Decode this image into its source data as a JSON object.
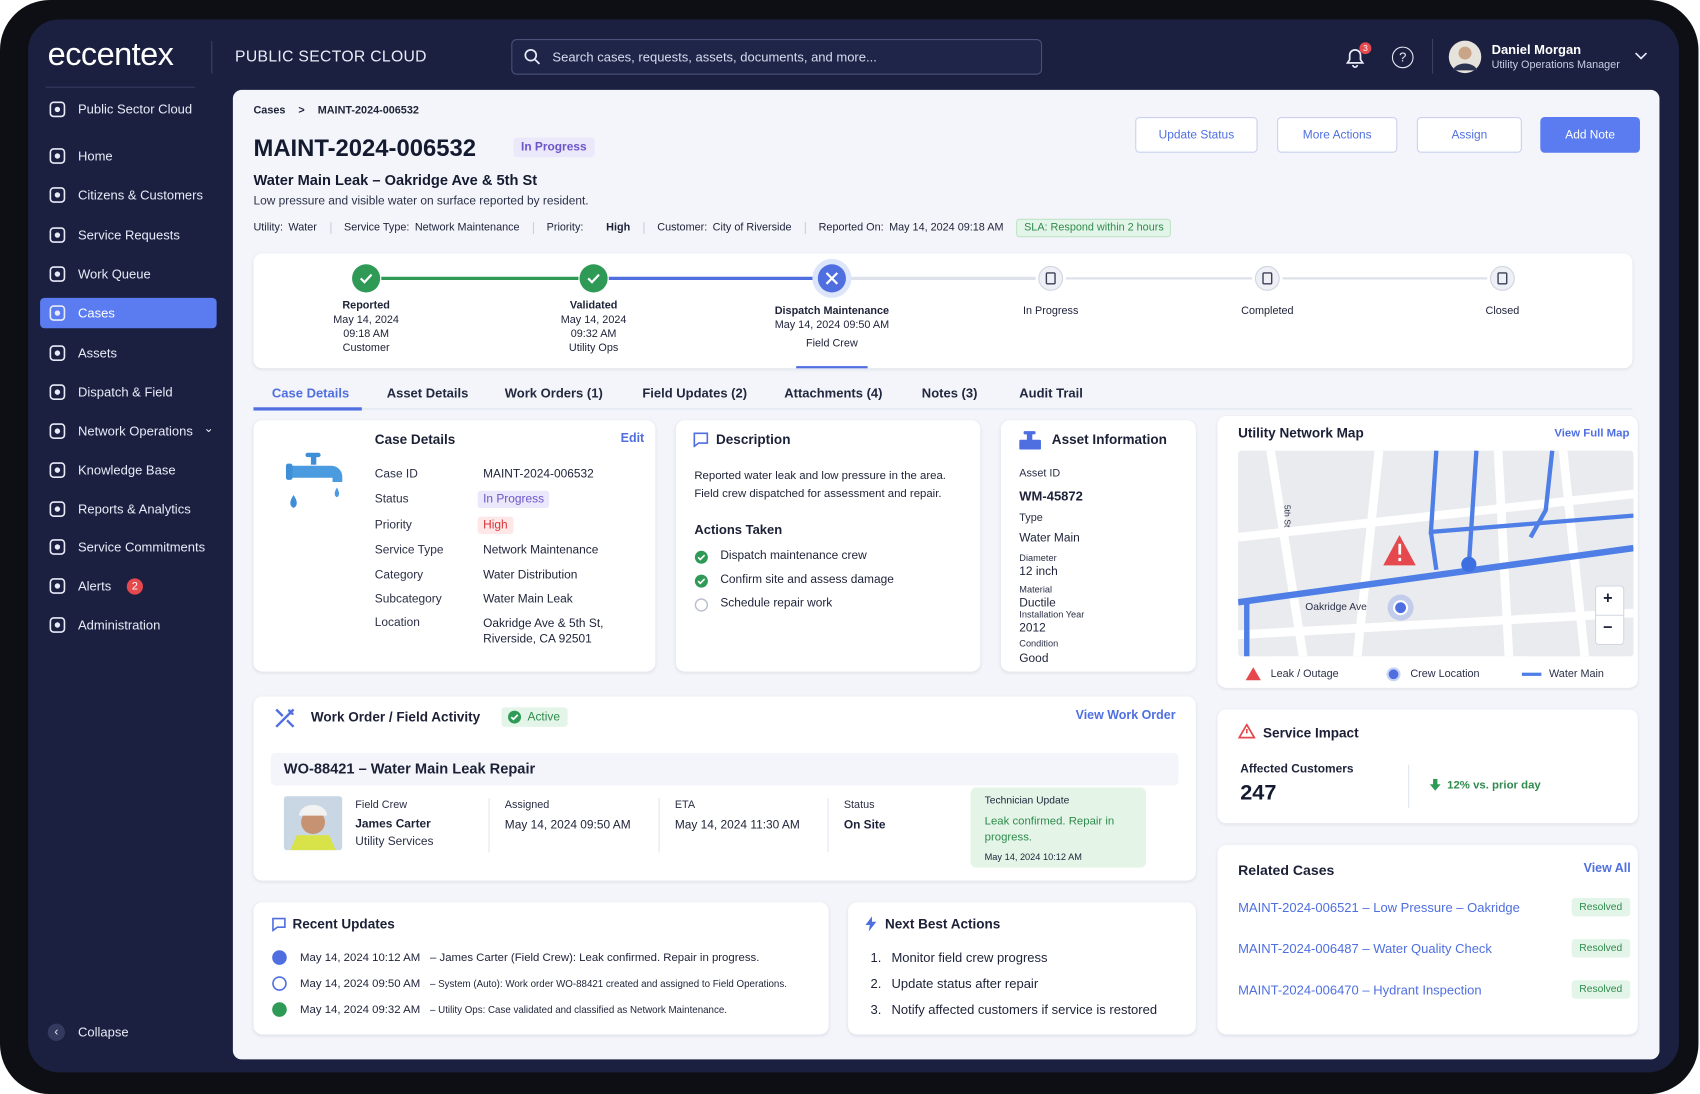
{
  "header": {
    "brand": "eccentex",
    "product": "PUBLIC SECTOR CLOUD",
    "search_placeholder": "Search cases, requests, assets, documents, and more...",
    "notifications": "3",
    "help": "?",
    "user_name": "Daniel Morgan",
    "user_role": "Utility Operations Manager"
  },
  "sidebar": {
    "items": [
      "Public Sector Cloud",
      "Home",
      "Citizens & Customers",
      "Service Requests",
      "Work Queue",
      "Cases",
      "Assets",
      "Dispatch & Field",
      "Network Operations",
      "Knowledge Base",
      "Reports & Analytics",
      "Service Commitments",
      "Alerts",
      "Administration"
    ],
    "active": 5,
    "alerts_badge": "2",
    "collapse": "Collapse"
  },
  "case": {
    "breadcrumb": [
      "Cases",
      ">",
      "MAINT-2024-006532"
    ],
    "id": "MAINT-2024-006532",
    "status": "In Progress",
    "title": "Water Main Leak – Oakridge Ave & 5th St",
    "subtitle": "Low pressure and visible water on surface reported by resident.",
    "meta": [
      {
        "label": "Utility:",
        "value": "Water"
      },
      {
        "label": "Service Type:",
        "value": "Network Maintenance"
      },
      {
        "label": "Priority:",
        "value": "High"
      },
      {
        "label": "Customer:",
        "value": "City of Riverside"
      },
      {
        "label": "Reported On:",
        "value": "May 14, 2024 09:18 AM"
      }
    ],
    "sla": "SLA: Respond within 2 hours",
    "buttons": [
      "Update Status",
      "More Actions",
      "Assign",
      "Add Note"
    ]
  },
  "stepper": [
    {
      "label": "Reported",
      "lines": [
        "May 14, 2024",
        "09:18 AM",
        "Customer"
      ],
      "state": "done"
    },
    {
      "label": "Validated",
      "lines": [
        "May 14, 2024",
        "09:32 AM",
        "Utility Ops"
      ],
      "state": "done"
    },
    {
      "label": "Dispatch Maintenance",
      "lines": [
        "May 14, 2024 09:50 AM",
        "Field Crew"
      ],
      "state": "current"
    },
    {
      "label": "In Progress",
      "lines": [],
      "state": "todo"
    },
    {
      "label": "Completed",
      "lines": [],
      "state": "todo"
    },
    {
      "label": "Closed",
      "lines": [],
      "state": "todo"
    }
  ],
  "tabs": [
    "Case Details",
    "Asset Details",
    "Work Orders (1)",
    "Field Updates (2)",
    "Attachments (4)",
    "Notes (3)",
    "Audit Trail"
  ],
  "case_details": {
    "title": "Case Details",
    "edit": "Edit",
    "fields": [
      [
        "Case ID",
        "MAINT-2024-006532"
      ],
      [
        "Status",
        "In Progress"
      ],
      [
        "Priority",
        "High"
      ],
      [
        "Service Type",
        "Network Maintenance"
      ],
      [
        "Category",
        "Water Distribution"
      ],
      [
        "Subcategory",
        "Water Main Leak"
      ],
      [
        "Location",
        "Oakridge Ave & 5th St, Riverside, CA 92501"
      ]
    ]
  },
  "description": {
    "title": "Description",
    "text": "Reported water leak and low pressure in the area. Field crew dispatched for assessment and repair.",
    "actions_title": "Actions Taken",
    "actions": [
      {
        "text": "Dispatch maintenance crew",
        "done": true
      },
      {
        "text": "Confirm site and assess damage",
        "done": true
      },
      {
        "text": "Schedule repair work",
        "done": false
      }
    ]
  },
  "asset": {
    "title": "Asset Information",
    "fields": [
      [
        "Asset ID",
        "WM-45872"
      ],
      [
        "Type",
        "Water Main"
      ],
      [
        "Diameter",
        "12 inch"
      ],
      [
        "Material",
        "Ductile"
      ],
      [
        "Installation Year",
        "2012"
      ],
      [
        "Condition",
        "Good"
      ]
    ]
  },
  "map": {
    "title": "Utility Network Map",
    "link": "View Full Map",
    "streets": [
      "Oakridge Ave",
      "5th St"
    ],
    "zoom": [
      "+",
      "−"
    ],
    "legend": [
      "Leak / Outage",
      "Crew Location",
      "Water Main"
    ]
  },
  "work_order": {
    "title": "Work Order / Field Activity",
    "status": "Active",
    "link": "View Work Order",
    "wo_title": "WO-88421 – Water Main Leak Repair",
    "crew_label": "Field Crew",
    "crew_name": "James Carter",
    "crew_org": "Utility Services",
    "columns": [
      [
        "Assigned",
        "May 14, 2024 09:50 AM"
      ],
      [
        "ETA",
        "May 14, 2024 11:30 AM"
      ],
      [
        "Status",
        "On Site"
      ]
    ],
    "update_label": "Technician Update",
    "update_text": "Leak confirmed. Repair in progress.",
    "update_time": "May 14, 2024 10:12 AM"
  },
  "service_impact": {
    "title": "Service Impact",
    "label": "Affected Customers",
    "value": "247",
    "change": "12% vs. prior day"
  },
  "related": {
    "title": "Related Cases",
    "link": "View All",
    "items": [
      {
        "text": "MAINT-2024-006521 – Low Pressure – Oakridge",
        "status": "Resolved"
      },
      {
        "text": "MAINT-2024-006487 – Water Quality Check",
        "status": "Resolved"
      },
      {
        "text": "MAINT-2024-006470 – Hydrant Inspection",
        "status": "Resolved"
      }
    ]
  },
  "recent_updates": {
    "title": "Recent Updates",
    "items": [
      {
        "time": "May 14, 2024 10:12 AM",
        "text": "–  James Carter (Field Crew): Leak confirmed. Repair in progress."
      },
      {
        "time": "May 14, 2024 09:50 AM",
        "text": "–  System (Auto): Work order WO-88421 created and assigned to Field Operations."
      },
      {
        "time": "May 14, 2024 09:32 AM",
        "text": "–  Utility Ops: Case validated and classified as Network Maintenance."
      }
    ]
  },
  "next_actions": {
    "title": "Next Best Actions",
    "items": [
      "Monitor field crew progress",
      "Update status after repair",
      "Notify affected customers if service is restored"
    ]
  }
}
